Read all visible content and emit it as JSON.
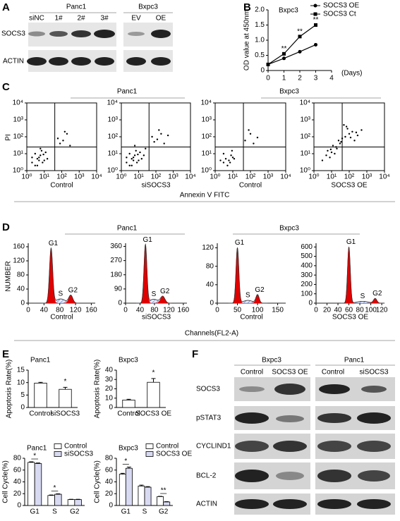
{
  "panel_labels": [
    "A",
    "B",
    "C",
    "D",
    "E",
    "F"
  ],
  "blot_a": {
    "groups": [
      {
        "name": "Panc1",
        "lanes": [
          "siNC",
          "1#",
          "2#",
          "3#"
        ]
      },
      {
        "name": "Bxpc3",
        "lanes": [
          "EV",
          "OE"
        ]
      }
    ],
    "rows": [
      "SOCS3",
      "ACTIN"
    ]
  },
  "blot_f": {
    "groups": [
      {
        "name": "Bxpc3",
        "lanes": [
          "Control",
          "SOCS3 OE"
        ]
      },
      {
        "name": "Panc1",
        "lanes": [
          "Control",
          "siSOCS3"
        ]
      }
    ],
    "rows": [
      "SOCS3",
      "pSTAT3",
      "CYCLIND1",
      "BCL-2",
      "ACTIN"
    ]
  },
  "panel_c": {
    "groups": [
      "Panc1",
      "Bxpc3"
    ],
    "ylabel": "PI",
    "xlabel": "Annexin V FITC"
  },
  "panel_d": {
    "groups": [
      "Panc1",
      "Bxpc3"
    ],
    "ylabel": "NUMBER",
    "xlabel": "Channels(FL2-A)"
  },
  "chart_data": [
    {
      "type": "line",
      "title": "Bxpc3",
      "xlabel": "(Days)",
      "ylabel": "OD value at 450nm",
      "x": [
        0,
        1,
        2,
        3
      ],
      "series": [
        {
          "name": "SOCS3 OE",
          "color": "#000000",
          "marker": "circle",
          "values": [
            0.2,
            0.4,
            0.62,
            0.85
          ]
        },
        {
          "name": "SOCS3 Ct",
          "color": "#000000",
          "marker": "square",
          "values": [
            0.2,
            0.55,
            1.12,
            1.5
          ]
        }
      ],
      "xlim": [
        0,
        4
      ],
      "xticks": [
        0,
        1,
        2,
        3,
        4
      ],
      "ylim": [
        0,
        2
      ],
      "yticks": [
        0,
        0.5,
        {
          "value": 1,
          "label": "1.0"
        },
        1.5,
        {
          "value": 2,
          "label": "2.0"
        }
      ],
      "legend": "top-right",
      "annotations": [
        {
          "text": "**",
          "x": 1
        },
        {
          "text": "**",
          "x": 2
        },
        {
          "text": "**",
          "x": 3
        }
      ]
    },
    {
      "type": "scatter",
      "label": "Control",
      "xlog": true,
      "ylog": true,
      "xlim": [
        1,
        10000
      ],
      "ylim": [
        1,
        10000
      ],
      "xticks": [
        {
          "value": 1,
          "label": "10⁰"
        },
        {
          "value": 10,
          "label": "10¹"
        },
        {
          "value": 100,
          "label": "10²"
        },
        {
          "value": 1000,
          "label": "10³"
        },
        {
          "value": 10000,
          "label": "10⁴"
        }
      ],
      "yticks": [
        {
          "value": 1,
          "label": "10⁰"
        },
        {
          "value": 10,
          "label": "10¹"
        },
        {
          "value": 100,
          "label": "10²"
        },
        {
          "value": 1000,
          "label": "10³"
        },
        {
          "value": 10000,
          "label": "10⁴"
        }
      ],
      "gates": {
        "x": 40,
        "y": 25
      },
      "x": [
        2,
        3,
        4,
        5,
        6,
        8,
        3,
        5,
        10,
        12,
        4,
        7,
        2,
        9,
        15,
        60,
        120,
        200,
        80,
        150,
        300,
        6
      ],
      "y": [
        3,
        2,
        5,
        4,
        8,
        3,
        10,
        6,
        4,
        12,
        2,
        15,
        6,
        9,
        5,
        80,
        60,
        150,
        40,
        200,
        30,
        20
      ]
    },
    {
      "type": "scatter",
      "label": "siSOCS3",
      "xlog": true,
      "ylog": true,
      "xlim": [
        1,
        10000
      ],
      "ylim": [
        1,
        10000
      ],
      "xticks": [
        {
          "value": 1,
          "label": "10⁰"
        },
        {
          "value": 10,
          "label": "10¹"
        },
        {
          "value": 100,
          "label": "10²"
        },
        {
          "value": 1000,
          "label": "10³"
        },
        {
          "value": 10000,
          "label": "10⁴"
        }
      ],
      "yticks": [
        {
          "value": 1,
          "label": "10⁰"
        },
        {
          "value": 10,
          "label": "10¹"
        },
        {
          "value": 100,
          "label": "10²"
        },
        {
          "value": 1000,
          "label": "10³"
        },
        {
          "value": 10000,
          "label": "10⁴"
        }
      ],
      "gates": {
        "x": 40,
        "y": 25
      },
      "x": [
        2,
        3,
        4,
        5,
        6,
        8,
        3,
        5,
        10,
        12,
        4,
        7,
        2,
        9,
        15,
        20,
        60,
        120,
        200,
        80,
        150,
        300,
        500,
        6,
        25
      ],
      "y": [
        3,
        2,
        5,
        4,
        8,
        3,
        10,
        6,
        4,
        12,
        2,
        15,
        6,
        9,
        5,
        8,
        100,
        70,
        150,
        50,
        250,
        40,
        120,
        30,
        20
      ]
    },
    {
      "type": "scatter",
      "label": "Control",
      "xlog": true,
      "ylog": true,
      "xlim": [
        1,
        10000
      ],
      "ylim": [
        1,
        10000
      ],
      "xticks": [
        {
          "value": 1,
          "label": "10⁰"
        },
        {
          "value": 10,
          "label": "10¹"
        },
        {
          "value": 100,
          "label": "10²"
        },
        {
          "value": 1000,
          "label": "10³"
        },
        {
          "value": 10000,
          "label": "10⁴"
        }
      ],
      "yticks": [
        {
          "value": 1,
          "label": "10⁰"
        },
        {
          "value": 10,
          "label": "10¹"
        },
        {
          "value": 100,
          "label": "10²"
        },
        {
          "value": 1000,
          "label": "10³"
        },
        {
          "value": 10000,
          "label": "10⁴"
        }
      ],
      "gates": {
        "x": 40,
        "y": 25
      },
      "x": [
        3,
        4,
        6,
        8,
        5,
        10,
        3,
        7,
        12,
        2,
        50,
        100,
        150,
        80,
        250,
        9
      ],
      "y": [
        3,
        5,
        4,
        8,
        2,
        6,
        10,
        3,
        5,
        4,
        60,
        150,
        40,
        250,
        90,
        15
      ]
    },
    {
      "type": "scatter",
      "label": "SOCS3 OE",
      "xlog": true,
      "ylog": true,
      "xlim": [
        1,
        10000
      ],
      "ylim": [
        1,
        10000
      ],
      "xticks": [
        {
          "value": 1,
          "label": "10⁰"
        },
        {
          "value": 10,
          "label": "10¹"
        },
        {
          "value": 100,
          "label": "10²"
        },
        {
          "value": 1000,
          "label": "10³"
        },
        {
          "value": 10000,
          "label": "10⁴"
        }
      ],
      "yticks": [
        {
          "value": 1,
          "label": "10⁰"
        },
        {
          "value": 10,
          "label": "10¹"
        },
        {
          "value": 100,
          "label": "10²"
        },
        {
          "value": 1000,
          "label": "10³"
        },
        {
          "value": 10000,
          "label": "10⁴"
        }
      ],
      "gates": {
        "x": 40,
        "y": 25
      },
      "x": [
        3,
        5,
        8,
        10,
        15,
        20,
        30,
        6,
        12,
        25,
        40,
        60,
        100,
        150,
        200,
        80,
        300,
        500,
        50,
        18,
        9,
        35,
        70,
        120,
        250
      ],
      "y": [
        4,
        8,
        6,
        12,
        10,
        20,
        40,
        15,
        30,
        60,
        80,
        100,
        150,
        200,
        60,
        300,
        120,
        250,
        500,
        25,
        18,
        50,
        400,
        90,
        180
      ]
    },
    {
      "type": "cell_cycle",
      "label": "Control",
      "xlim": [
        0,
        170
      ],
      "xticks": [
        0,
        40,
        80,
        120,
        160
      ],
      "ylim": [
        0,
        170
      ],
      "yticks": [
        0,
        40,
        80,
        120,
        160
      ],
      "peaks": [
        {
          "name": "G1",
          "x": 58,
          "height": 155,
          "sd": 4,
          "color": "#e00000"
        },
        {
          "name": "S",
          "x": 82,
          "height": 12,
          "sd": 12,
          "color": "#5570b8",
          "pattern": "hatch"
        },
        {
          "name": "G2",
          "x": 108,
          "height": 22,
          "sd": 5,
          "color": "#e00000"
        }
      ]
    },
    {
      "type": "cell_cycle",
      "label": "siSOCS3",
      "xlim": [
        0,
        170
      ],
      "xticks": [
        0,
        40,
        80,
        120,
        160
      ],
      "ylim": [
        0,
        380
      ],
      "yticks": [
        0,
        90,
        180,
        270,
        360
      ],
      "peaks": [
        {
          "name": "G1",
          "x": 55,
          "height": 370,
          "sd": 4,
          "color": "#e00000"
        },
        {
          "name": "S",
          "x": 78,
          "height": 25,
          "sd": 12,
          "color": "#5570b8",
          "pattern": "hatch"
        },
        {
          "name": "G2",
          "x": 103,
          "height": 42,
          "sd": 6,
          "color": "#e00000"
        }
      ]
    },
    {
      "type": "cell_cycle",
      "label": "Control",
      "xlim": [
        0,
        170
      ],
      "xticks": [
        0,
        50,
        100,
        150
      ],
      "ylim": [
        0,
        130
      ],
      "yticks": [
        0,
        40,
        80,
        120
      ],
      "peaks": [
        {
          "name": "G1",
          "x": 50,
          "height": 120,
          "sd": 3.5,
          "color": "#e00000"
        },
        {
          "name": "S",
          "x": 76,
          "height": 6,
          "sd": 12,
          "color": "#5570b8",
          "pattern": "hatch"
        },
        {
          "name": "G2",
          "x": 100,
          "height": 18,
          "sd": 4,
          "color": "#e00000"
        }
      ]
    },
    {
      "type": "cell_cycle",
      "label": "SOCS3 OE",
      "xlim": [
        0,
        125
      ],
      "xticks": [
        0,
        20,
        40,
        60,
        80,
        100,
        120
      ],
      "ylim": [
        0,
        640
      ],
      "yticks": [
        0,
        100,
        200,
        300,
        400,
        500,
        600
      ],
      "peaks": [
        {
          "name": "G1",
          "x": 60,
          "height": 600,
          "sd": 2.5,
          "color": "#e00000"
        },
        {
          "name": "S",
          "x": 85,
          "height": 20,
          "sd": 10,
          "color": "#5570b8",
          "pattern": "hatch"
        },
        {
          "name": "G2",
          "x": 108,
          "height": 50,
          "sd": 3,
          "color": "#e00000"
        }
      ]
    },
    {
      "type": "bar",
      "title": "Panc1",
      "ylabel": "Apoptosis Rate(%)",
      "categories": [
        "Control",
        "siSOCS3"
      ],
      "values": [
        9.8,
        7.3
      ],
      "errors": [
        0.3,
        0.8
      ],
      "color": "#ffffff",
      "ylim": [
        0,
        15
      ],
      "yticks": [
        0,
        5,
        10,
        15
      ],
      "annotations": [
        {
          "text": "*",
          "category": 1
        }
      ]
    },
    {
      "type": "bar",
      "title": "Bxpc3",
      "ylabel": "Apoptosis Rate(%)",
      "categories": [
        "Control",
        "SOCS3 OE"
      ],
      "values": [
        8,
        27
      ],
      "errors": [
        0.8,
        4
      ],
      "color": "#ffffff",
      "ylim": [
        0,
        40
      ],
      "yticks": [
        0,
        10,
        20,
        30,
        40
      ],
      "annotations": [
        {
          "text": "*",
          "category": 1
        }
      ]
    },
    {
      "type": "bar",
      "title": "Panc1",
      "ylabel": "Cell Cycle(%)",
      "categories": [
        "G1",
        "S",
        "G2"
      ],
      "series": [
        {
          "name": "Control",
          "color": "#ffffff",
          "values": [
            73,
            17,
            10
          ],
          "errors": [
            1,
            0.8,
            0.5
          ]
        },
        {
          "name": "siSOCS3",
          "color": "#d8daf2",
          "values": [
            71,
            19,
            10
          ],
          "errors": [
            1,
            0.8,
            0.5
          ]
        }
      ],
      "ylim": [
        0,
        80
      ],
      "yticks": [
        0,
        20,
        40,
        60,
        80
      ],
      "legend": "top-right",
      "annotations": [
        {
          "text": "*",
          "category": 0
        },
        {
          "text": "*",
          "category": 1
        }
      ]
    },
    {
      "type": "bar",
      "title": "Bxpc3",
      "ylabel": "Cell Cycle(%)",
      "categories": [
        "G1",
        "S",
        "G2"
      ],
      "series": [
        {
          "name": "Control",
          "color": "#ffffff",
          "values": [
            53,
            33,
            15
          ],
          "errors": [
            1.5,
            1.5,
            0.5
          ]
        },
        {
          "name": "SOCS3 OE",
          "color": "#d8daf2",
          "values": [
            63,
            31,
            6
          ],
          "errors": [
            2,
            1,
            0.5
          ]
        }
      ],
      "ylim": [
        0,
        80
      ],
      "yticks": [
        0,
        20,
        40,
        60,
        80
      ],
      "legend": "top-right",
      "annotations": [
        {
          "text": "*",
          "category": 0
        },
        {
          "text": "**",
          "category": 2
        }
      ]
    }
  ]
}
